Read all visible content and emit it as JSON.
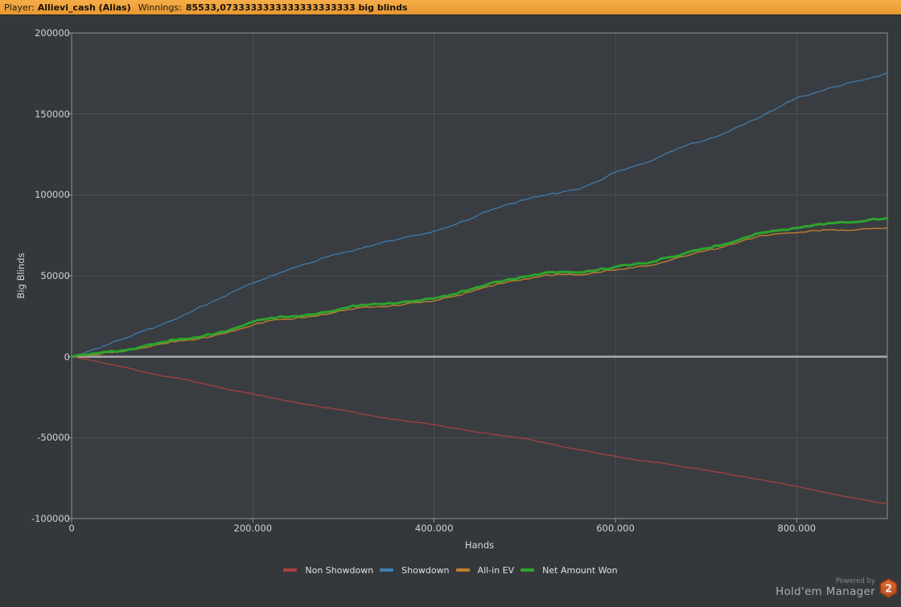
{
  "topbar": {
    "player_label": "Player:",
    "player_name": "Allievi_cash (Alias)",
    "winnings_label": "Winnings:",
    "winnings_value": "85533,0733333333333333333333 big blinds"
  },
  "branding": {
    "powered_by": "Powered by",
    "app_name": "Hold'em Manager",
    "logo_number": "2"
  },
  "chart_data": {
    "type": "line",
    "xlabel": "Hands",
    "ylabel": "Big Blinds",
    "xlim": [
      0,
      900000
    ],
    "ylim": [
      -100000,
      200000
    ],
    "grid": true,
    "zero_line": true,
    "legend_position": "bottom",
    "background": "#393d41",
    "grid_color": "#4c5054",
    "border_color": "#8d9295",
    "zero_line_color": "#a6a6a6",
    "xticks": [
      {
        "value": 0,
        "label": "0"
      },
      {
        "value": 200000,
        "label": "200.000"
      },
      {
        "value": 400000,
        "label": "400.000"
      },
      {
        "value": 600000,
        "label": "600.000"
      },
      {
        "value": 800000,
        "label": "800.000"
      }
    ],
    "yticks": [
      {
        "value": 200000,
        "label": "200000"
      },
      {
        "value": 150000,
        "label": "150000"
      },
      {
        "value": 100000,
        "label": "100000"
      },
      {
        "value": 50000,
        "label": "50000"
      },
      {
        "value": 0,
        "label": "0"
      },
      {
        "value": -50000,
        "label": "-50000"
      },
      {
        "value": -100000,
        "label": "-100000"
      }
    ],
    "x": [
      0,
      20000,
      40000,
      60000,
      80000,
      100000,
      120000,
      140000,
      160000,
      180000,
      200000,
      220000,
      240000,
      260000,
      280000,
      300000,
      320000,
      340000,
      360000,
      380000,
      400000,
      420000,
      440000,
      460000,
      480000,
      500000,
      520000,
      540000,
      560000,
      580000,
      600000,
      620000,
      640000,
      660000,
      680000,
      700000,
      720000,
      740000,
      760000,
      780000,
      800000,
      820000,
      840000,
      860000,
      880000,
      900000
    ],
    "series": [
      {
        "name": "Non Showdown",
        "color": "#ae4040",
        "width": 1.2,
        "roughness": 280,
        "values": [
          0,
          -2000,
          -4500,
          -6500,
          -9500,
          -12000,
          -13500,
          -16000,
          -18500,
          -21000,
          -23000,
          -25500,
          -27500,
          -29500,
          -31500,
          -33000,
          -35500,
          -37500,
          -39000,
          -40500,
          -42000,
          -44000,
          -46000,
          -47500,
          -49000,
          -50500,
          -53000,
          -55500,
          -57500,
          -59500,
          -61500,
          -63500,
          -65000,
          -66500,
          -68500,
          -70000,
          -72000,
          -74000,
          -76000,
          -78000,
          -80000,
          -82500,
          -85000,
          -87000,
          -89000,
          -91000
        ]
      },
      {
        "name": "Showdown",
        "color": "#3f7fb5",
        "width": 1.2,
        "roughness": 600,
        "values": [
          0,
          3500,
          7500,
          11500,
          16000,
          20000,
          24500,
          30500,
          35000,
          40500,
          45500,
          50000,
          54000,
          57500,
          61500,
          64500,
          67000,
          70000,
          72500,
          75000,
          77500,
          81000,
          85000,
          90000,
          94000,
          97000,
          99500,
          101500,
          103500,
          108000,
          114000,
          117500,
          121000,
          126500,
          131000,
          134000,
          138000,
          143000,
          148000,
          154000,
          160000,
          163000,
          166500,
          169500,
          172000,
          175500
        ]
      },
      {
        "name": "All-in EV",
        "color": "#bf7e30",
        "width": 1.4,
        "roughness": 650,
        "values": [
          0,
          1000,
          2500,
          3500,
          5500,
          8000,
          10000,
          11000,
          13500,
          16000,
          19500,
          22500,
          23000,
          24500,
          26000,
          28500,
          30500,
          31000,
          31500,
          33500,
          34500,
          37000,
          40000,
          43500,
          46000,
          48000,
          50000,
          51000,
          50500,
          52000,
          53500,
          55000,
          56500,
          59500,
          62500,
          65500,
          68000,
          71500,
          75000,
          76000,
          76500,
          78000,
          78500,
          78000,
          79000,
          79500
        ]
      },
      {
        "name": "Net Amount Won",
        "color": "#2da42d",
        "width": 3,
        "roughness": 650,
        "values": [
          0,
          1500,
          3000,
          4000,
          6500,
          9000,
          11000,
          12000,
          14500,
          17500,
          21500,
          24000,
          24500,
          26000,
          27500,
          30000,
          32000,
          32500,
          33000,
          34500,
          36000,
          38500,
          41500,
          45000,
          47500,
          49500,
          51500,
          52500,
          52000,
          53500,
          55500,
          57000,
          58500,
          61500,
          64500,
          67000,
          69500,
          73000,
          76500,
          78000,
          79500,
          81500,
          82500,
          83000,
          84500,
          85533
        ]
      }
    ]
  }
}
